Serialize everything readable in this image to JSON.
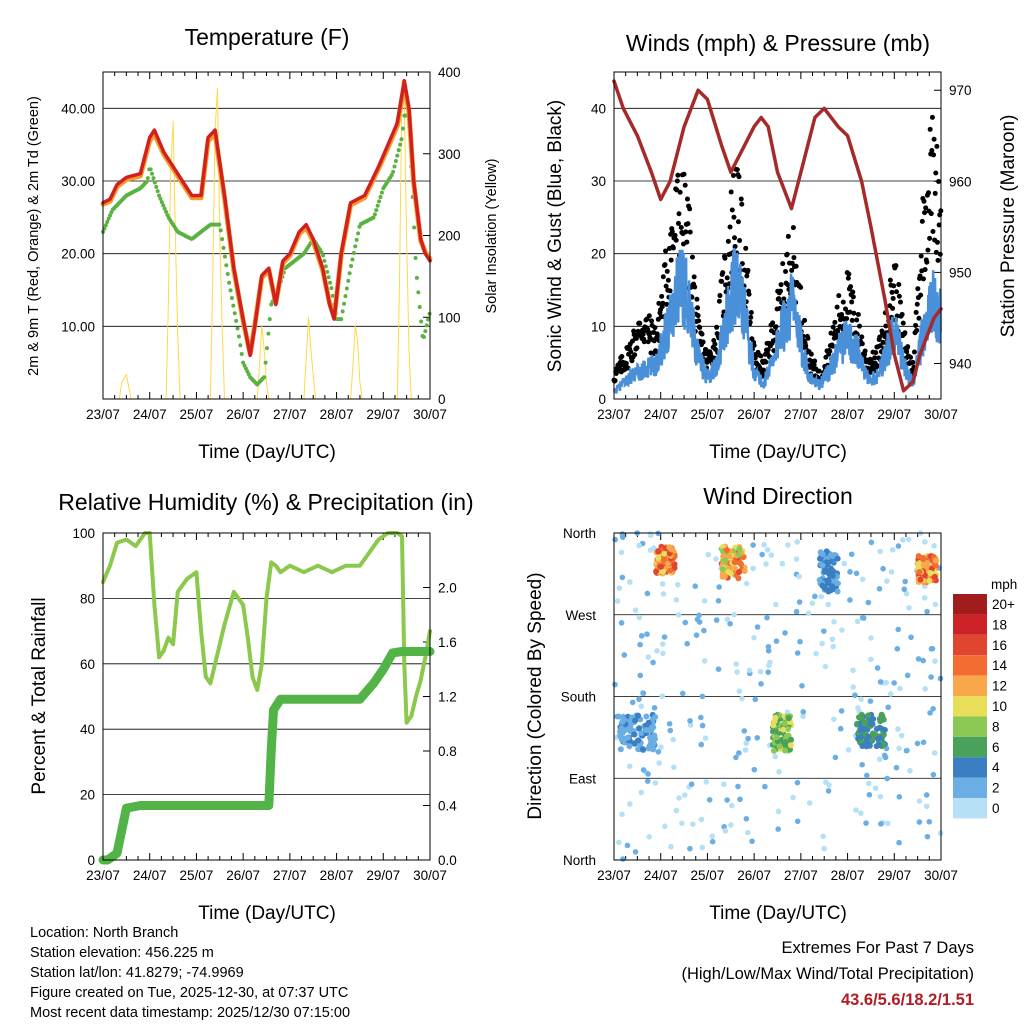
{
  "chart_data": [
    {
      "id": "temp",
      "type": "line",
      "title": "Temperature (F)",
      "xlabel": "Time (Day/UTC)",
      "ylabel": "2m & 9m T (Red, Orange) & 2m Td (Green)",
      "y2label": "Solar Insolation (Yellow)",
      "categories": [
        "23/07",
        "24/07",
        "25/07",
        "26/07",
        "27/07",
        "28/07",
        "29/07",
        "30/07"
      ],
      "xlim": [
        0,
        7
      ],
      "ylim": [
        0,
        45
      ],
      "y2lim": [
        0,
        400
      ],
      "yticks": [
        10,
        20,
        30,
        40
      ],
      "yticklabels": [
        "10.00",
        "20.00",
        "30.00",
        "40.00"
      ],
      "y2ticks": [
        0,
        100,
        200,
        300,
        400
      ],
      "y2ticklabels": [
        "0",
        "100",
        "200",
        "300",
        "400"
      ],
      "series": [
        {
          "name": "2m T",
          "color": "#d21f1f",
          "axis": "left",
          "x": [
            0,
            0.15,
            0.3,
            0.5,
            0.8,
            1.0,
            1.1,
            1.3,
            1.6,
            1.9,
            2.1,
            2.25,
            2.4,
            2.6,
            2.8,
            3.0,
            3.15,
            3.25,
            3.4,
            3.55,
            3.7,
            3.85,
            4.0,
            4.2,
            4.35,
            4.5,
            4.7,
            4.85,
            4.95,
            5.1,
            5.3,
            5.6,
            5.9,
            6.1,
            6.3,
            6.45,
            6.55,
            6.65,
            6.8,
            6.9,
            7.0
          ],
          "values": [
            27,
            27.5,
            29.5,
            30.5,
            31,
            36,
            37,
            34,
            31,
            28,
            28,
            36,
            37,
            28,
            18,
            11,
            6,
            10,
            17,
            18,
            13,
            19,
            20,
            23,
            24,
            22,
            18,
            13,
            11,
            20,
            27,
            28,
            32,
            35,
            38,
            43.8,
            40,
            30,
            22,
            20,
            19
          ]
        },
        {
          "name": "9m T",
          "color": "#f39c2b",
          "axis": "left",
          "x": [
            0,
            0.15,
            0.3,
            0.5,
            0.8,
            1.0,
            1.1,
            1.3,
            1.6,
            1.9,
            2.1,
            2.25,
            2.4,
            2.6,
            2.8,
            3.0,
            3.15,
            3.25,
            3.4,
            3.55,
            3.7,
            3.85,
            4.0,
            4.2,
            4.35,
            4.5,
            4.7,
            4.85,
            4.95,
            5.1,
            5.3,
            5.6,
            5.9,
            6.1,
            6.3,
            6.45,
            6.55,
            6.65,
            6.8,
            6.9,
            7.0
          ],
          "values": [
            26.8,
            27.2,
            29.2,
            30.2,
            30.7,
            35.5,
            36.5,
            33.7,
            30.7,
            27.7,
            27.7,
            35.5,
            36.5,
            27.7,
            17.8,
            10.8,
            6.2,
            10.2,
            16.7,
            17.7,
            13.2,
            18.7,
            19.7,
            22.7,
            23.6,
            21.7,
            17.8,
            13.2,
            11.2,
            19.8,
            26.7,
            27.7,
            31.7,
            34.6,
            37.6,
            43.3,
            39.5,
            29.7,
            21.8,
            20.2,
            19.3
          ]
        },
        {
          "name": "2m Td",
          "color": "#5ab243",
          "axis": "left",
          "x": [
            0,
            0.2,
            0.5,
            0.8,
            0.95,
            1.0,
            1.2,
            1.4,
            1.6,
            1.9,
            2.1,
            2.3,
            2.5,
            2.7,
            2.9,
            3.0,
            3.15,
            3.3,
            3.45,
            3.6,
            3.75,
            3.9,
            4.1,
            4.3,
            4.5,
            4.7,
            4.9,
            5.0,
            5.1,
            5.3,
            5.5,
            5.8,
            6.0,
            6.2,
            6.4,
            6.45,
            6.55,
            6.7,
            6.85,
            7.0
          ],
          "values": [
            23,
            26,
            28,
            29,
            30,
            32,
            28,
            25,
            23,
            22,
            23,
            24,
            24,
            16,
            9,
            5,
            3,
            2,
            3,
            13,
            15,
            18,
            19,
            20,
            22,
            20,
            15,
            11,
            11,
            18,
            24,
            25,
            29,
            31,
            36,
            39,
            39,
            18,
            8,
            12
          ]
        },
        {
          "name": "Solar Insolation",
          "color": "#ffd84a",
          "axis": "right",
          "x": [
            0.35,
            0.4,
            0.45,
            0.5,
            0.55,
            0.6,
            1.35,
            1.4,
            1.45,
            1.5,
            1.55,
            1.6,
            1.65,
            2.3,
            2.35,
            2.4,
            2.45,
            2.5,
            2.55,
            2.6,
            3.3,
            3.35,
            3.4,
            3.45,
            3.5,
            3.55,
            4.3,
            4.35,
            4.4,
            4.45,
            4.5,
            4.55,
            5.3,
            5.35,
            5.4,
            5.45,
            5.5,
            5.55,
            6.3,
            6.35,
            6.4,
            6.45,
            6.5,
            6.55,
            6.6
          ],
          "values": [
            0,
            20,
            25,
            30,
            15,
            0,
            0,
            120,
            280,
            340,
            200,
            80,
            0,
            0,
            150,
            330,
            380,
            200,
            90,
            0,
            0,
            40,
            90,
            60,
            20,
            0,
            0,
            50,
            100,
            60,
            30,
            0,
            0,
            40,
            90,
            70,
            20,
            0,
            0,
            150,
            390,
            360,
            200,
            60,
            0
          ]
        }
      ]
    },
    {
      "id": "winds",
      "type": "scatter",
      "title": "Winds (mph) & Pressure (mb)",
      "xlabel": "Time (Day/UTC)",
      "ylabel": "Sonic Wind & Gust (Blue, Black)",
      "y2label": "Station Pressure (Maroon)",
      "categories": [
        "23/07",
        "24/07",
        "25/07",
        "26/07",
        "27/07",
        "28/07",
        "29/07",
        "30/07"
      ],
      "xlim": [
        0,
        7
      ],
      "ylim": [
        0,
        45
      ],
      "y2lim": [
        936.1,
        972
      ],
      "yticks": [
        0,
        10,
        20,
        30,
        40
      ],
      "yticklabels": [
        "0",
        "10",
        "20",
        "30",
        "40"
      ],
      "y2ticks": [
        940,
        950,
        960,
        970
      ],
      "y2ticklabels": [
        "940",
        "950",
        "960",
        "970"
      ],
      "series": [
        {
          "name": "Station Pressure",
          "type": "line",
          "color": "#a52a2a",
          "axis": "right",
          "x": [
            0,
            0.2,
            0.5,
            0.8,
            1.0,
            1.2,
            1.5,
            1.8,
            2.0,
            2.3,
            2.5,
            2.8,
            3.0,
            3.15,
            3.3,
            3.5,
            3.8,
            4.0,
            4.3,
            4.5,
            4.8,
            5.0,
            5.3,
            5.5,
            5.8,
            6.0,
            6.2,
            6.4,
            6.55,
            6.7,
            6.85,
            7.0
          ],
          "values": [
            971,
            968,
            965,
            961,
            958,
            960,
            966,
            970,
            969,
            964,
            961,
            964,
            966,
            967,
            966,
            961,
            957,
            961,
            967,
            968,
            966,
            965,
            960,
            955,
            947,
            941,
            937,
            938,
            941,
            943,
            945,
            946
          ]
        },
        {
          "name": "Sonic Wind",
          "type": "scatter",
          "color": "#4a90d9",
          "axis": "left",
          "x": [
            0,
            0.3,
            0.6,
            0.9,
            1.0,
            1.2,
            1.4,
            1.6,
            1.8,
            2.0,
            2.2,
            2.4,
            2.6,
            2.8,
            3.0,
            3.2,
            3.4,
            3.6,
            3.8,
            4.0,
            4.2,
            4.4,
            4.6,
            4.8,
            5.0,
            5.2,
            5.4,
            5.6,
            5.8,
            6.0,
            6.2,
            6.4,
            6.6,
            6.8,
            7.0
          ],
          "values": [
            1,
            3,
            4,
            5,
            7,
            12,
            18,
            14,
            6,
            3,
            5,
            11,
            17,
            12,
            4,
            2,
            6,
            10,
            14,
            8,
            3,
            2,
            4,
            7,
            9,
            7,
            3,
            3,
            6,
            10,
            5,
            2,
            9,
            14,
            12
          ]
        },
        {
          "name": "Gust",
          "type": "scatter",
          "color": "#000000",
          "axis": "left",
          "x": [
            0,
            0.3,
            0.6,
            0.9,
            1.0,
            1.2,
            1.4,
            1.6,
            1.8,
            2.0,
            2.2,
            2.4,
            2.6,
            2.8,
            3.0,
            3.2,
            3.4,
            3.6,
            3.8,
            4.0,
            4.2,
            4.4,
            4.6,
            4.8,
            5.0,
            5.2,
            5.4,
            5.6,
            5.8,
            6.0,
            6.2,
            6.4,
            6.6,
            6.8,
            7.0
          ],
          "values": [
            3,
            6,
            10,
            8,
            12,
            20,
            26,
            22,
            9,
            5,
            8,
            18,
            27,
            18,
            6,
            4,
            9,
            14,
            20,
            12,
            5,
            3,
            6,
            11,
            14,
            10,
            5,
            5,
            9,
            16,
            8,
            4,
            22,
            31,
            25
          ]
        }
      ]
    },
    {
      "id": "rh",
      "type": "line",
      "title": "Relative Humidity (%) & Precipitation (in)",
      "xlabel": "Time (Day/UTC)",
      "ylabel": "Percent & Total Rainfall",
      "categories": [
        "23/07",
        "24/07",
        "25/07",
        "26/07",
        "27/07",
        "28/07",
        "29/07",
        "30/07"
      ],
      "xlim": [
        0,
        7
      ],
      "ylim": [
        0,
        100
      ],
      "y2lim": [
        0,
        2.4
      ],
      "yticks": [
        0,
        20,
        40,
        60,
        80,
        100
      ],
      "yticklabels": [
        "0",
        "20",
        "40",
        "60",
        "80",
        "100"
      ],
      "y2ticks": [
        0,
        0.4,
        0.8,
        1.2,
        1.6,
        2.0
      ],
      "y2ticklabels": [
        "0.0",
        "0.4",
        "0.8",
        "1.2",
        "1.6",
        "2.0"
      ],
      "series": [
        {
          "name": "Relative Humidity",
          "color": "#8cc84b",
          "axis": "left",
          "x": [
            0,
            0.15,
            0.3,
            0.5,
            0.7,
            0.9,
            1.0,
            1.1,
            1.2,
            1.3,
            1.4,
            1.5,
            1.6,
            1.8,
            2.0,
            2.1,
            2.2,
            2.3,
            2.4,
            2.5,
            2.6,
            2.8,
            3.0,
            3.1,
            3.2,
            3.3,
            3.4,
            3.5,
            3.6,
            3.7,
            3.8,
            4.0,
            4.3,
            4.6,
            4.9,
            5.2,
            5.5,
            5.7,
            5.9,
            6.1,
            6.3,
            6.4,
            6.45,
            6.5,
            6.6,
            6.7,
            6.8,
            6.9,
            7.0
          ],
          "values": [
            85,
            90,
            97,
            98,
            96,
            100,
            100,
            78,
            62,
            64,
            68,
            66,
            82,
            86,
            88,
            70,
            56,
            54,
            60,
            66,
            72,
            82,
            78,
            68,
            56,
            52,
            60,
            80,
            91,
            90,
            88,
            90,
            88,
            90,
            88,
            90,
            90,
            94,
            98,
            100,
            100,
            99,
            60,
            42,
            44,
            50,
            55,
            62,
            70
          ]
        },
        {
          "name": "Total Precipitation",
          "color": "#52b446",
          "axis": "right",
          "x": [
            0,
            0.1,
            0.3,
            0.5,
            0.8,
            1.0,
            2.0,
            3.0,
            3.55,
            3.6,
            3.65,
            3.8,
            4.0,
            4.5,
            5.0,
            5.5,
            5.8,
            6.0,
            6.2,
            6.4,
            7.0
          ],
          "values": [
            0,
            0,
            0.05,
            0.38,
            0.4,
            0.4,
            0.4,
            0.4,
            0.4,
            0.8,
            1.1,
            1.18,
            1.18,
            1.18,
            1.18,
            1.18,
            1.3,
            1.4,
            1.52,
            1.53,
            1.53
          ]
        }
      ]
    },
    {
      "id": "wdir",
      "type": "scatter",
      "title": "Wind Direction",
      "xlabel": "Time (Day/UTC)",
      "ylabel": "Direction (Colored By Speed)",
      "categories": [
        "23/07",
        "24/07",
        "25/07",
        "26/07",
        "27/07",
        "28/07",
        "29/07",
        "30/07"
      ],
      "xlim": [
        0,
        7
      ],
      "ylim": [
        0,
        360
      ],
      "ytick_values": [
        0,
        90,
        180,
        270,
        360
      ],
      "yticklabels": [
        "North",
        "East",
        "South",
        "West",
        "North"
      ],
      "colorbar_title": "mph",
      "colorbar_labels": [
        "20+",
        "18",
        "16",
        "14",
        "12",
        "10",
        "8",
        "6",
        "4",
        "2",
        "0"
      ],
      "colorbar_colors": [
        "#a11c1d",
        "#cb2127",
        "#e2452f",
        "#f36d33",
        "#f9a74b",
        "#e8de5a",
        "#8bc954",
        "#4aa15b",
        "#3a7fc2",
        "#6aaee4",
        "#b5e0f6"
      ],
      "clusters": [
        {
          "x": [
            0.9,
            1.3
          ],
          "y": [
            315,
            345
          ],
          "speed": [
            10,
            18
          ]
        },
        {
          "x": [
            2.3,
            2.8
          ],
          "y": [
            310,
            345
          ],
          "speed": [
            8,
            18
          ]
        },
        {
          "x": [
            4.4,
            4.8
          ],
          "y": [
            295,
            340
          ],
          "speed": [
            2,
            6
          ]
        },
        {
          "x": [
            6.5,
            6.9
          ],
          "y": [
            305,
            335
          ],
          "speed": [
            10,
            18
          ]
        },
        {
          "x": [
            0.1,
            0.9
          ],
          "y": [
            120,
            160
          ],
          "speed": [
            2,
            5
          ]
        },
        {
          "x": [
            3.4,
            3.8
          ],
          "y": [
            120,
            160
          ],
          "speed": [
            6,
            11
          ]
        },
        {
          "x": [
            5.2,
            5.8
          ],
          "y": [
            125,
            160
          ],
          "speed": [
            4,
            8
          ]
        }
      ]
    }
  ],
  "info": {
    "location": "Location: North Branch",
    "elevation": "Station elevation: 456.225 m",
    "latlon": "Station lat/lon: 41.8279; -74.9969",
    "created": "Figure created on Tue, 2025-12-30, at 07:37 UTC",
    "recent": "Most recent data timestamp: 2025/12/30 07:15:00"
  },
  "extremes": {
    "title": "Extremes For Past 7 Days",
    "subtitle": "(High/Low/Max Wind/Total Precipitation)",
    "values": "43.6/5.6/18.2/1.51"
  }
}
